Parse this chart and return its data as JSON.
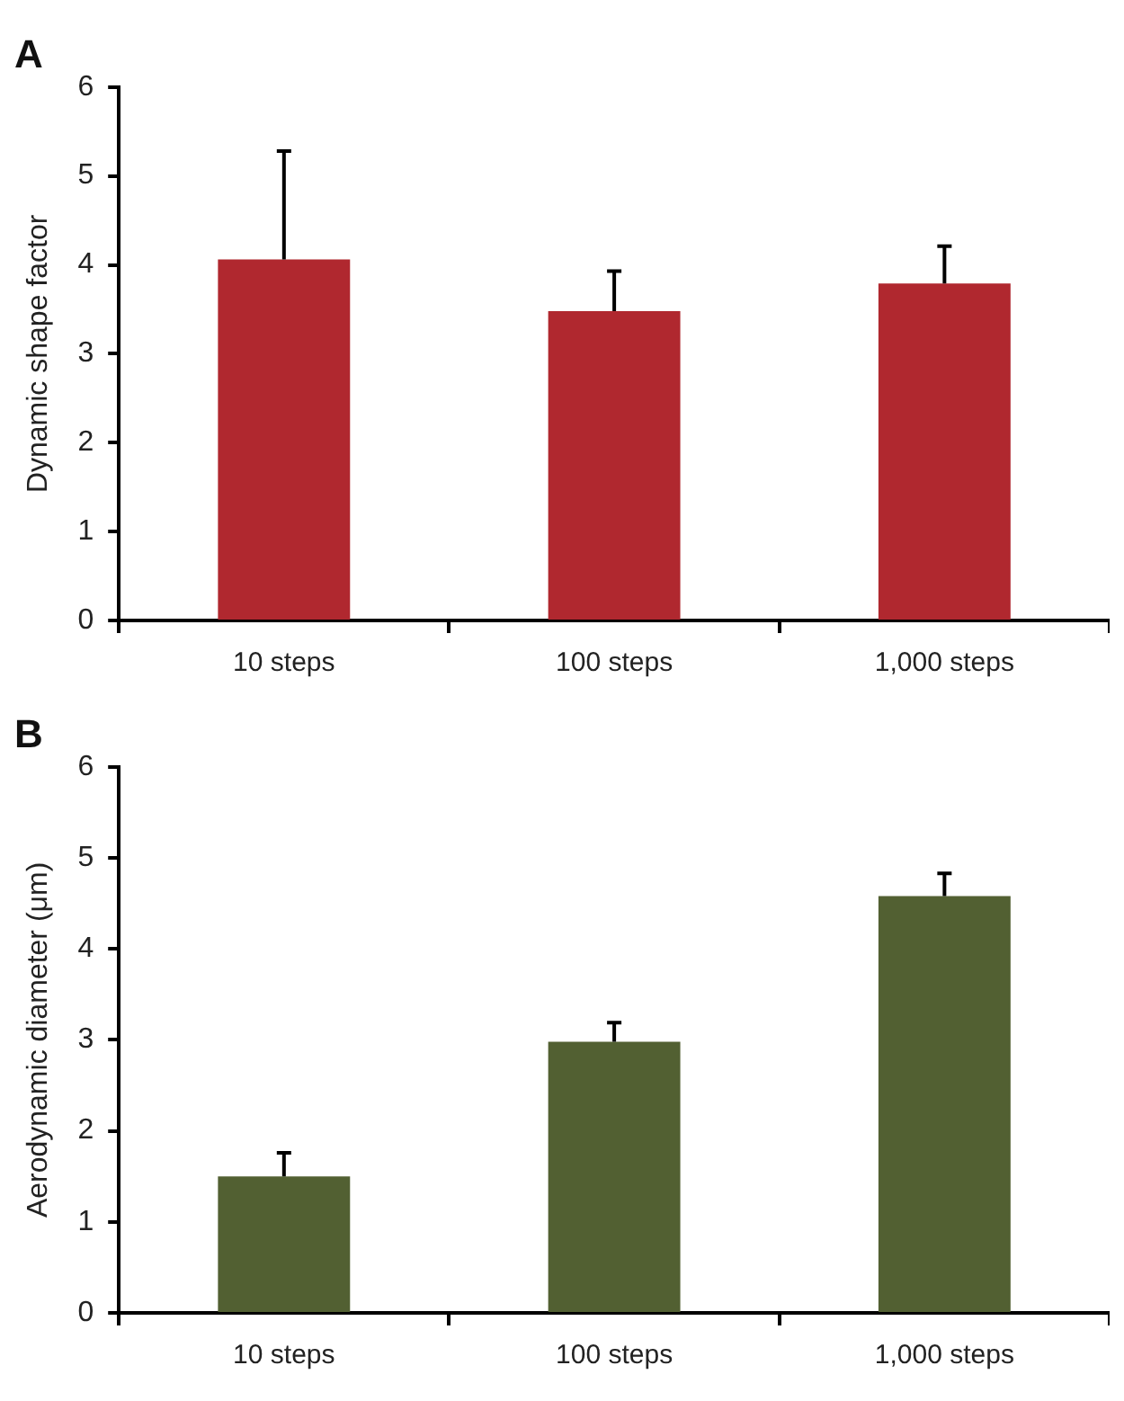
{
  "chart_data": [
    {
      "type": "bar",
      "title": "A",
      "ylabel": "Dynamic shape factor",
      "categories": [
        "10 steps",
        "100 steps",
        "1,000 steps"
      ],
      "values": [
        4.06,
        3.48,
        3.79
      ],
      "color": "#b0282f",
      "errors": [
        [
          4.06,
          5.28
        ],
        [
          3.48,
          3.93
        ],
        [
          3.79,
          4.21
        ]
      ],
      "ylim": [
        0,
        6
      ],
      "yticks": [
        0,
        1,
        2,
        3,
        4,
        5,
        6
      ]
    },
    {
      "type": "bar",
      "title": "B",
      "ylabel": "Aerodynamic diameter (μm)",
      "categories": [
        "10 steps",
        "100 steps",
        "1,000 steps"
      ],
      "values": [
        1.5,
        2.98,
        4.58
      ],
      "color": "#526032",
      "errors": [
        [
          1.5,
          1.76
        ],
        [
          2.98,
          3.19
        ],
        [
          4.58,
          4.83
        ]
      ],
      "ylim": [
        0,
        6
      ],
      "yticks": [
        0,
        1,
        2,
        3,
        4,
        5,
        6
      ]
    }
  ]
}
